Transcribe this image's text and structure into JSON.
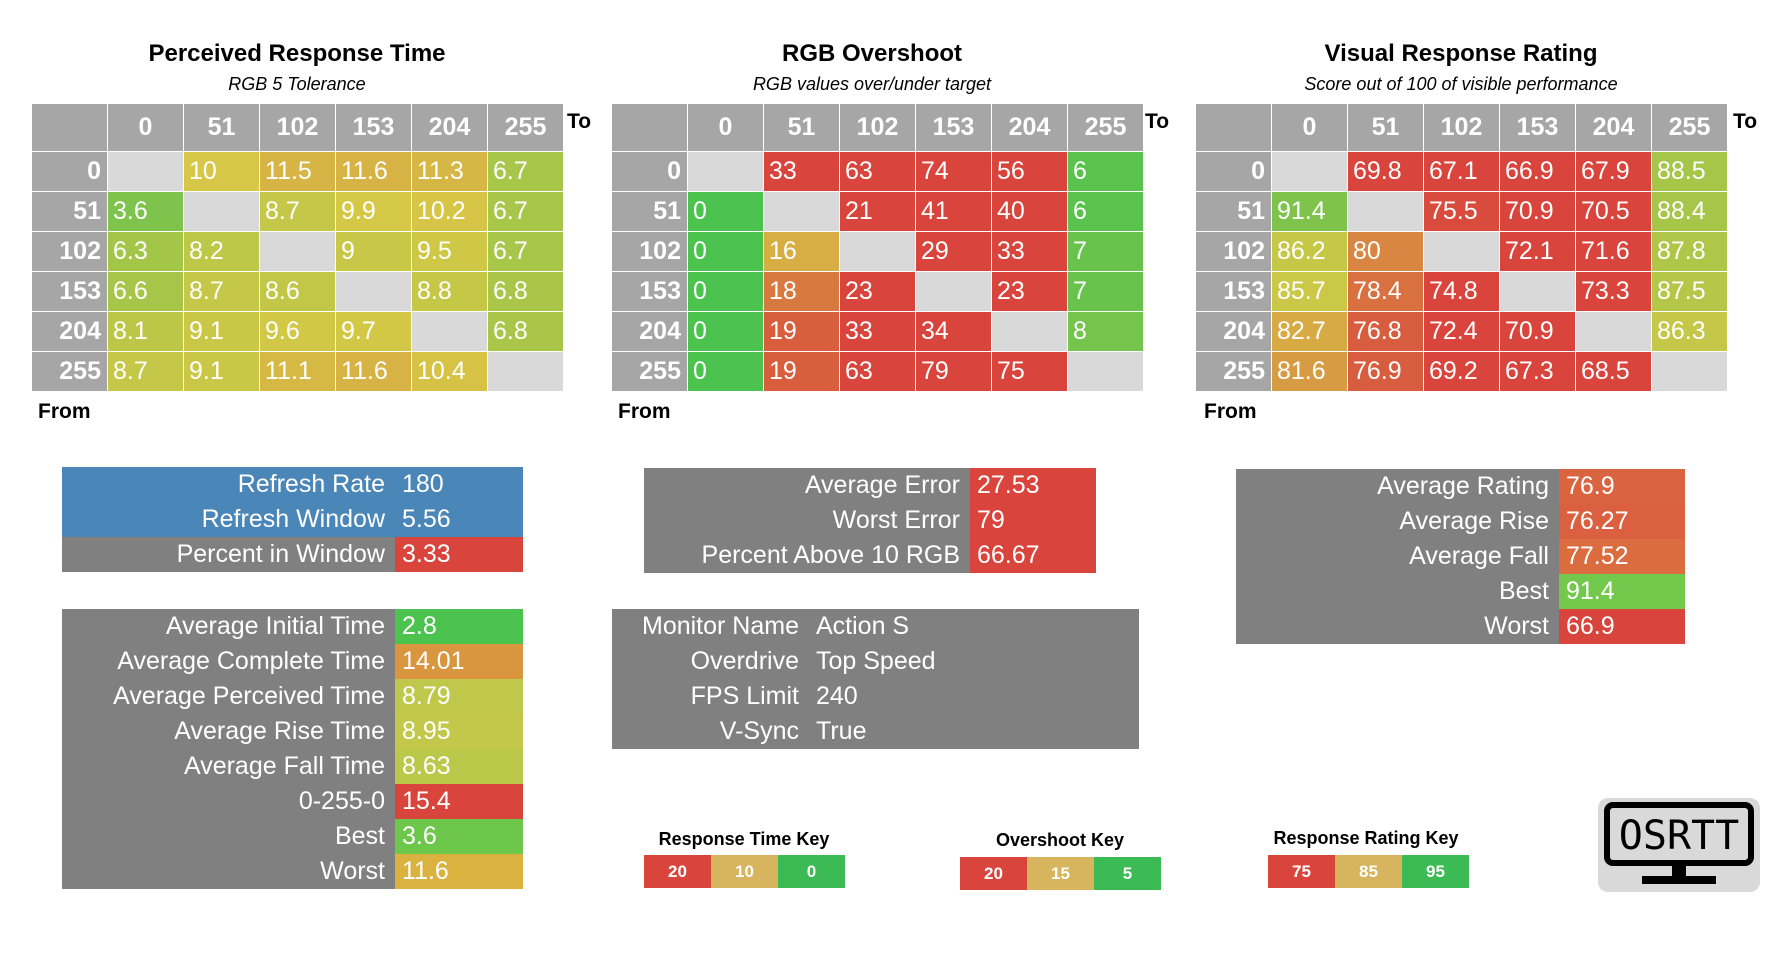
{
  "colors": {
    "header_gray": "#a6a6a6",
    "diag_gray": "#d9d9d9",
    "panel_gray": "#808080",
    "blue": "#4a86b8",
    "red": "#d9443c",
    "green": "#4cc24f"
  },
  "chart_data": [
    {
      "type": "heatmap",
      "title": "Perceived Response Time",
      "subtitle": "RGB 5 Tolerance",
      "xlabel": "To",
      "ylabel": "From",
      "x": [
        "0",
        "51",
        "102",
        "153",
        "204",
        "255"
      ],
      "y": [
        "0",
        "51",
        "102",
        "153",
        "204",
        "255"
      ],
      "values": [
        [
          null,
          10,
          11.5,
          11.6,
          11.3,
          6.7
        ],
        [
          3.6,
          null,
          8.7,
          9.9,
          10.2,
          6.7
        ],
        [
          6.3,
          8.2,
          null,
          9,
          9.5,
          6.7
        ],
        [
          6.6,
          8.7,
          8.6,
          null,
          8.8,
          6.8
        ],
        [
          8.1,
          9.1,
          9.6,
          9.7,
          null,
          6.8
        ],
        [
          8.7,
          9.1,
          11.1,
          11.6,
          10.4,
          null
        ]
      ],
      "color_scale": {
        "low": 0,
        "mid": 10,
        "high": 20,
        "direction": "high_is_red"
      }
    },
    {
      "type": "heatmap",
      "title": "RGB Overshoot",
      "subtitle": "RGB values over/under target",
      "xlabel": "To",
      "ylabel": "From",
      "x": [
        "0",
        "51",
        "102",
        "153",
        "204",
        "255"
      ],
      "y": [
        "0",
        "51",
        "102",
        "153",
        "204",
        "255"
      ],
      "values": [
        [
          null,
          33,
          63,
          74,
          56,
          6
        ],
        [
          0,
          null,
          21,
          41,
          40,
          6
        ],
        [
          0,
          16,
          null,
          29,
          33,
          7
        ],
        [
          0,
          18,
          23,
          null,
          23,
          7
        ],
        [
          0,
          19,
          33,
          34,
          null,
          8
        ],
        [
          0,
          19,
          63,
          79,
          75,
          null
        ]
      ],
      "color_scale": {
        "low": 5,
        "mid": 15,
        "high": 20,
        "direction": "high_is_red"
      }
    },
    {
      "type": "heatmap",
      "title": "Visual Response Rating",
      "subtitle": "Score out of 100 of visible performance",
      "xlabel": "To",
      "ylabel": "From",
      "x": [
        "0",
        "51",
        "102",
        "153",
        "204",
        "255"
      ],
      "y": [
        "0",
        "51",
        "102",
        "153",
        "204",
        "255"
      ],
      "values": [
        [
          null,
          69.8,
          67.1,
          66.9,
          67.9,
          88.5
        ],
        [
          91.4,
          null,
          75.5,
          70.9,
          70.5,
          88.4
        ],
        [
          86.2,
          80,
          null,
          72.1,
          71.6,
          87.8
        ],
        [
          85.7,
          78.4,
          74.8,
          null,
          73.3,
          87.5
        ],
        [
          82.7,
          76.8,
          72.4,
          70.9,
          null,
          86.3
        ],
        [
          81.6,
          76.9,
          69.2,
          67.3,
          68.5,
          null
        ]
      ],
      "color_scale": {
        "low": 75,
        "mid": 85,
        "high": 95,
        "direction": "high_is_green"
      }
    }
  ],
  "panels": {
    "refresh": [
      {
        "label": "Refresh Rate",
        "value": "180",
        "label_color": "#4a86b8",
        "value_color": "#4a86b8"
      },
      {
        "label": "Refresh Window",
        "value": "5.56",
        "label_color": "#4a86b8",
        "value_color": "#4a86b8"
      },
      {
        "label": "Percent in Window",
        "value": "3.33",
        "label_color": "#808080",
        "value_color": "#d9443c"
      }
    ],
    "times": [
      {
        "label": "Average Initial Time",
        "value": "2.8",
        "label_color": "#808080",
        "value_color": "#4cc24f"
      },
      {
        "label": "Average Complete Time",
        "value": "14.01",
        "label_color": "#808080",
        "value_color": "#d9963e"
      },
      {
        "label": "Average Perceived Time",
        "value": "8.79",
        "label_color": "#808080",
        "value_color": "#bfc84a"
      },
      {
        "label": "Average Rise Time",
        "value": "8.95",
        "label_color": "#808080",
        "value_color": "#c3c74a"
      },
      {
        "label": "Average Fall Time",
        "value": "8.63",
        "label_color": "#808080",
        "value_color": "#bcc84a"
      },
      {
        "label": "0-255-0",
        "value": "15.4",
        "label_color": "#808080",
        "value_color": "#d9443c"
      },
      {
        "label": "Best",
        "value": "3.6",
        "label_color": "#808080",
        "value_color": "#6cc74b"
      },
      {
        "label": "Worst",
        "value": "11.6",
        "label_color": "#808080",
        "value_color": "#d9b23f"
      }
    ],
    "error": [
      {
        "label": "Average Error",
        "value": "27.53",
        "label_color": "#808080",
        "value_color": "#d9443c"
      },
      {
        "label": "Worst Error",
        "value": "79",
        "label_color": "#808080",
        "value_color": "#d9443c"
      },
      {
        "label": "Percent Above 10 RGB",
        "value": "66.67",
        "label_color": "#808080",
        "value_color": "#d9443c"
      }
    ],
    "monitor": [
      {
        "label": "Monitor Name",
        "value": "Action S",
        "label_color": "#808080",
        "value_color": "#808080"
      },
      {
        "label": "Overdrive",
        "value": "Top Speed",
        "label_color": "#808080",
        "value_color": "#808080"
      },
      {
        "label": "FPS Limit",
        "value": "240",
        "label_color": "#808080",
        "value_color": "#808080"
      },
      {
        "label": "V-Sync",
        "value": "True",
        "label_color": "#808080",
        "value_color": "#808080"
      }
    ],
    "rating": [
      {
        "label": "Average Rating",
        "value": "76.9",
        "label_color": "#808080",
        "value_color": "#db6440"
      },
      {
        "label": "Average Rise",
        "value": "76.27",
        "label_color": "#808080",
        "value_color": "#db6040"
      },
      {
        "label": "Average Fall",
        "value": "77.52",
        "label_color": "#808080",
        "value_color": "#db6c40"
      },
      {
        "label": "Best",
        "value": "91.4",
        "label_color": "#808080",
        "value_color": "#73c94b"
      },
      {
        "label": "Worst",
        "value": "66.9",
        "label_color": "#808080",
        "value_color": "#d9443c"
      }
    ]
  },
  "keys": [
    {
      "title": "Response Time Key",
      "items": [
        {
          "label": "20",
          "color": "#d9443c"
        },
        {
          "label": "10",
          "color": "#d6b55e"
        },
        {
          "label": "0",
          "color": "#3cba54"
        }
      ]
    },
    {
      "title": "Overshoot Key",
      "items": [
        {
          "label": "20",
          "color": "#d9443c"
        },
        {
          "label": "15",
          "color": "#d6b55e"
        },
        {
          "label": "5",
          "color": "#3cba54"
        }
      ]
    },
    {
      "title": "Response Rating Key",
      "items": [
        {
          "label": "75",
          "color": "#d9443c"
        },
        {
          "label": "85",
          "color": "#d6b55e"
        },
        {
          "label": "95",
          "color": "#3cba54"
        }
      ]
    }
  ],
  "logo": {
    "text": "OSRTT"
  }
}
